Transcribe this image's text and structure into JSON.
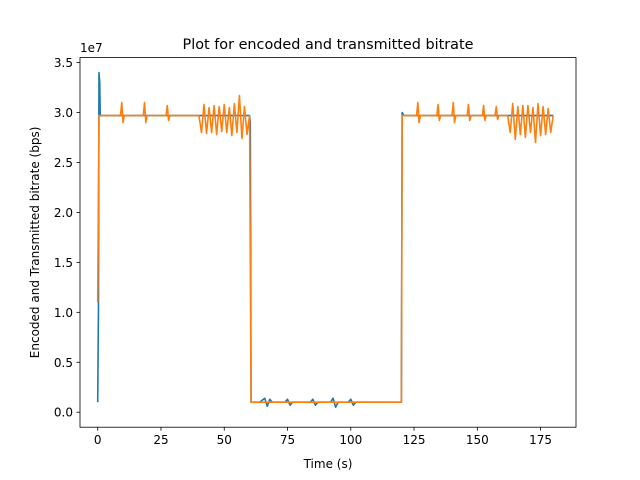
{
  "chart_data": {
    "type": "line",
    "title": "Plot for encoded and transmitted bitrate",
    "xlabel": "Time (s)",
    "ylabel": "Encoded and Transmitted bitrate (bps)",
    "y_offset_label": "1e7",
    "xlim": [
      -7,
      189
    ],
    "ylim": [
      -1500000,
      35500000
    ],
    "x_ticks": [
      0,
      25,
      50,
      75,
      100,
      125,
      150,
      175
    ],
    "x_tick_labels": [
      "0",
      "25",
      "50",
      "75",
      "100",
      "125",
      "150",
      "175"
    ],
    "y_ticks": [
      0,
      5000000,
      10000000,
      15000000,
      20000000,
      25000000,
      30000000,
      35000000
    ],
    "y_tick_labels": [
      "0.0",
      "0.5",
      "1.0",
      "1.5",
      "2.0",
      "2.5",
      "3.0",
      "3.5"
    ],
    "grid": false,
    "series": [
      {
        "color": "#1f77b4",
        "points": [
          [
            0,
            1000000
          ],
          [
            0.3,
            10500000
          ],
          [
            0.5,
            34000000
          ],
          [
            0.8,
            33000000
          ],
          [
            1.0,
            29700000
          ],
          [
            40,
            29700000
          ],
          [
            60,
            29700000
          ],
          [
            60.3,
            29000000
          ],
          [
            60.6,
            1000000
          ],
          [
            64,
            1000000
          ],
          [
            66,
            1400000
          ],
          [
            67,
            600000
          ],
          [
            68,
            1300000
          ],
          [
            69,
            1000000
          ],
          [
            74,
            1000000
          ],
          [
            75,
            1300000
          ],
          [
            76,
            700000
          ],
          [
            77,
            1000000
          ],
          [
            84,
            1000000
          ],
          [
            85,
            1300000
          ],
          [
            86,
            700000
          ],
          [
            87,
            1000000
          ],
          [
            92,
            1000000
          ],
          [
            93,
            1400000
          ],
          [
            94,
            500000
          ],
          [
            95,
            1000000
          ],
          [
            99,
            1000000
          ],
          [
            100,
            1300000
          ],
          [
            101,
            700000
          ],
          [
            102,
            1000000
          ],
          [
            120,
            1000000
          ],
          [
            120.3,
            30000000
          ],
          [
            121,
            29700000
          ],
          [
            180,
            29700000
          ]
        ]
      },
      {
        "color": "#ff7f0e",
        "points": [
          [
            0,
            11000000
          ],
          [
            0.5,
            29700000
          ],
          [
            9,
            29700000
          ],
          [
            9.5,
            31000000
          ],
          [
            10,
            29000000
          ],
          [
            10.5,
            29700000
          ],
          [
            18,
            29700000
          ],
          [
            18.5,
            31000000
          ],
          [
            19,
            29000000
          ],
          [
            19.5,
            29700000
          ],
          [
            27,
            29700000
          ],
          [
            27.5,
            30700000
          ],
          [
            28,
            29200000
          ],
          [
            28.5,
            29700000
          ],
          [
            40,
            29700000
          ],
          [
            41,
            28000000
          ],
          [
            42,
            30800000
          ],
          [
            43,
            27900000
          ],
          [
            44,
            30500000
          ],
          [
            45,
            28000000
          ],
          [
            46,
            30700000
          ],
          [
            47,
            27800000
          ],
          [
            48,
            30600000
          ],
          [
            49,
            28100000
          ],
          [
            50,
            30800000
          ],
          [
            51,
            28000000
          ],
          [
            52,
            30500000
          ],
          [
            53,
            27700000
          ],
          [
            54,
            30900000
          ],
          [
            55,
            28000000
          ],
          [
            56,
            31700000
          ],
          [
            57,
            27400000
          ],
          [
            58,
            30600000
          ],
          [
            59,
            27800000
          ],
          [
            60,
            29700000
          ],
          [
            60.6,
            1000000
          ],
          [
            120,
            1000000
          ],
          [
            120.3,
            29700000
          ],
          [
            126,
            29700000
          ],
          [
            126.5,
            31000000
          ],
          [
            127,
            29000000
          ],
          [
            127.5,
            29700000
          ],
          [
            134,
            29700000
          ],
          [
            134.5,
            30800000
          ],
          [
            135,
            29200000
          ],
          [
            135.5,
            29700000
          ],
          [
            140,
            29700000
          ],
          [
            140.5,
            31000000
          ],
          [
            141,
            29000000
          ],
          [
            141.5,
            29700000
          ],
          [
            146,
            29700000
          ],
          [
            146.5,
            30800000
          ],
          [
            147,
            29200000
          ],
          [
            147.5,
            29700000
          ],
          [
            152,
            29700000
          ],
          [
            152.5,
            30700000
          ],
          [
            153,
            29200000
          ],
          [
            153.5,
            29700000
          ],
          [
            157,
            29700000
          ],
          [
            157.5,
            30600000
          ],
          [
            158,
            29300000
          ],
          [
            158.5,
            29700000
          ],
          [
            162,
            29700000
          ],
          [
            163,
            28000000
          ],
          [
            164,
            30900000
          ],
          [
            165,
            27300000
          ],
          [
            166,
            30600000
          ],
          [
            167,
            27800000
          ],
          [
            168,
            30700000
          ],
          [
            169,
            27500000
          ],
          [
            170,
            30700000
          ],
          [
            171,
            28000000
          ],
          [
            172,
            30500000
          ],
          [
            173,
            27000000
          ],
          [
            174,
            30900000
          ],
          [
            175,
            27700000
          ],
          [
            176,
            30600000
          ],
          [
            177,
            27800000
          ],
          [
            178,
            30400000
          ],
          [
            179,
            28000000
          ],
          [
            180,
            29700000
          ]
        ]
      }
    ]
  }
}
